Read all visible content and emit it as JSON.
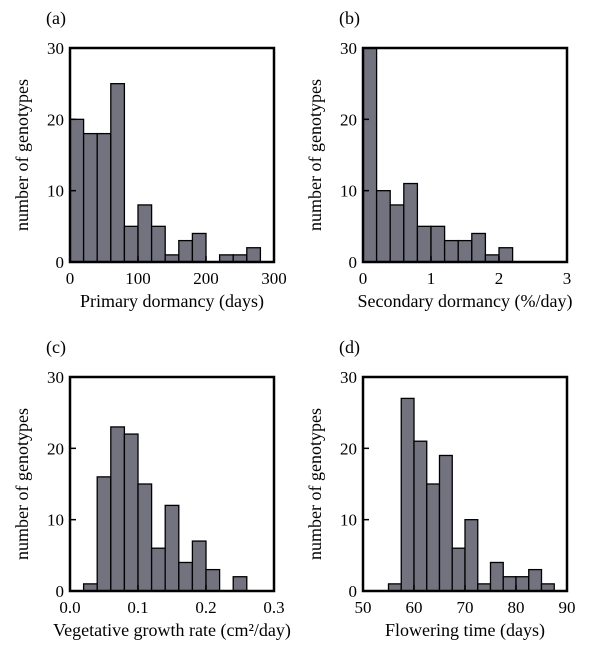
{
  "chart_data": [
    {
      "type": "bar",
      "panel": "(a)",
      "xlabel": "Primary dormancy (days)",
      "ylabel": "number of genotypes",
      "xlim": [
        0,
        300
      ],
      "ylim": [
        0,
        30
      ],
      "xticks": [
        "0",
        "100",
        "200",
        "300"
      ],
      "yticks": [
        "0",
        "10",
        "20",
        "30"
      ],
      "bin_width": 20,
      "bin_starts": [
        0,
        20,
        40,
        60,
        80,
        100,
        120,
        140,
        160,
        180,
        200,
        220,
        240,
        260
      ],
      "values": [
        20,
        18,
        18,
        25,
        5,
        8,
        5,
        1,
        3,
        4,
        0,
        1,
        1,
        2
      ]
    },
    {
      "type": "bar",
      "panel": "(b)",
      "xlabel": "Secondary dormancy (%/day)",
      "ylabel": "number of genotypes",
      "xlim": [
        0,
        3
      ],
      "ylim": [
        0,
        30
      ],
      "xticks": [
        "0",
        "1",
        "2",
        "3"
      ],
      "yticks": [
        "0",
        "10",
        "20",
        "30"
      ],
      "bin_width": 0.2,
      "bin_starts": [
        0,
        0.2,
        0.4,
        0.6,
        0.8,
        1.0,
        1.2,
        1.4,
        1.6,
        1.8,
        2.0,
        2.2
      ],
      "values": [
        30,
        10,
        8,
        11,
        5,
        5,
        3,
        3,
        4,
        1,
        2,
        0
      ]
    },
    {
      "type": "bar",
      "panel": "(c)",
      "xlabel": "Vegetative growth rate (cm²/day)",
      "ylabel": "number of genotypes",
      "xlim": [
        0,
        0.3
      ],
      "ylim": [
        0,
        30
      ],
      "xticks": [
        "0.0",
        "0.1",
        "0.2",
        "0.3"
      ],
      "yticks": [
        "0",
        "10",
        "20",
        "30"
      ],
      "bin_width": 0.02,
      "bin_starts": [
        0.0,
        0.02,
        0.04,
        0.06,
        0.08,
        0.1,
        0.12,
        0.14,
        0.16,
        0.18,
        0.2,
        0.22,
        0.24
      ],
      "values": [
        0,
        1,
        16,
        23,
        22,
        15,
        6,
        12,
        4,
        7,
        3,
        0,
        2
      ]
    },
    {
      "type": "bar",
      "panel": "(d)",
      "xlabel": "Flowering time (days)",
      "ylabel": "number of genotypes",
      "xlim": [
        50,
        90
      ],
      "ylim": [
        0,
        30
      ],
      "xticks": [
        "50",
        "60",
        "70",
        "80",
        "90"
      ],
      "yticks": [
        "0",
        "10",
        "20",
        "30"
      ],
      "bin_width": 2.5,
      "bin_starts": [
        52.5,
        55,
        57.5,
        60,
        62.5,
        65,
        67.5,
        70,
        72.5,
        75,
        77.5,
        80,
        82.5,
        85
      ],
      "values": [
        0,
        1,
        27,
        21,
        15,
        19,
        6,
        10,
        1,
        4,
        2,
        2,
        3,
        1
      ]
    }
  ]
}
